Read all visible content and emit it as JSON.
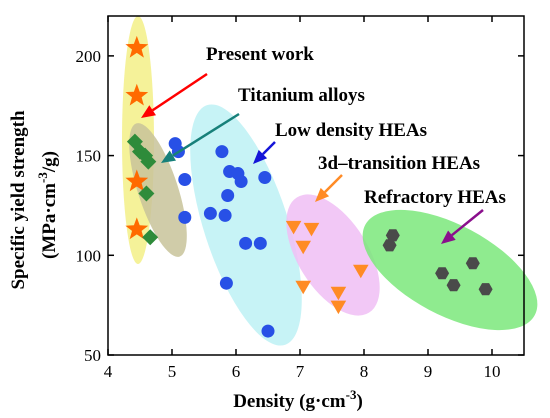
{
  "chart_data": {
    "type": "scatter",
    "xlabel_main": "Density (g·cm",
    "xlabel_sup": "-3",
    "xlabel_end": ")",
    "ylabel_line1": "Specific yield strength",
    "ylabel_line2_main": "(MPa·cm",
    "ylabel_line2_sup": "-3",
    "ylabel_line2_end": "/g)",
    "xlim": [
      4,
      10.5
    ],
    "ylim": [
      50,
      220
    ],
    "xticks": [
      4,
      5,
      6,
      7,
      8,
      9,
      10
    ],
    "yticks": [
      50,
      100,
      150,
      200
    ],
    "series": [
      {
        "name": "Present work",
        "marker": "star",
        "color": "#ff6a00",
        "ellipse_color": "#f3f087",
        "arrow_color": "#ff0000",
        "x": [
          4.45,
          4.45,
          4.45,
          4.45
        ],
        "y": [
          204,
          180,
          137,
          113
        ]
      },
      {
        "name": "Titanium alloys",
        "marker": "diamond",
        "color": "#2e8b3a",
        "ellipse_color": "#c8c39a",
        "arrow_color": "#17807a",
        "x": [
          4.42,
          4.5,
          4.58,
          4.6,
          4.63,
          4.66
        ],
        "y": [
          157,
          152,
          150,
          131,
          147,
          109
        ]
      },
      {
        "name": "Low density HEAs",
        "marker": "circle",
        "color": "#2850e6",
        "ellipse_color": "#bdf1f4",
        "arrow_color": "#1515d8",
        "x": [
          5.05,
          5.1,
          5.2,
          5.2,
          5.6,
          5.78,
          5.83,
          5.85,
          5.87,
          5.9,
          6.03,
          6.08,
          6.15,
          6.38,
          6.45,
          6.5
        ],
        "y": [
          156,
          152,
          138,
          119,
          121,
          152,
          120,
          86,
          130,
          142,
          141,
          137,
          106,
          106,
          139,
          62
        ]
      },
      {
        "name": "3d–transition HEAs",
        "marker": "triangle",
        "color": "#ff8b25",
        "ellipse_color": "#f0bef5",
        "arrow_color": "#ff8b25",
        "x": [
          6.9,
          7.05,
          7.05,
          7.18,
          7.6,
          7.6,
          7.95
        ],
        "y": [
          115,
          105,
          85,
          114,
          82,
          75,
          93
        ]
      },
      {
        "name": "Refractory HEAs",
        "marker": "hexagon",
        "color": "#4a4a4a",
        "ellipse_color": "#7be87b",
        "arrow_color": "#8a0f8c",
        "x": [
          8.4,
          8.45,
          9.22,
          9.4,
          9.7,
          9.9
        ],
        "y": [
          105,
          110,
          91,
          85,
          96,
          83
        ]
      }
    ]
  }
}
